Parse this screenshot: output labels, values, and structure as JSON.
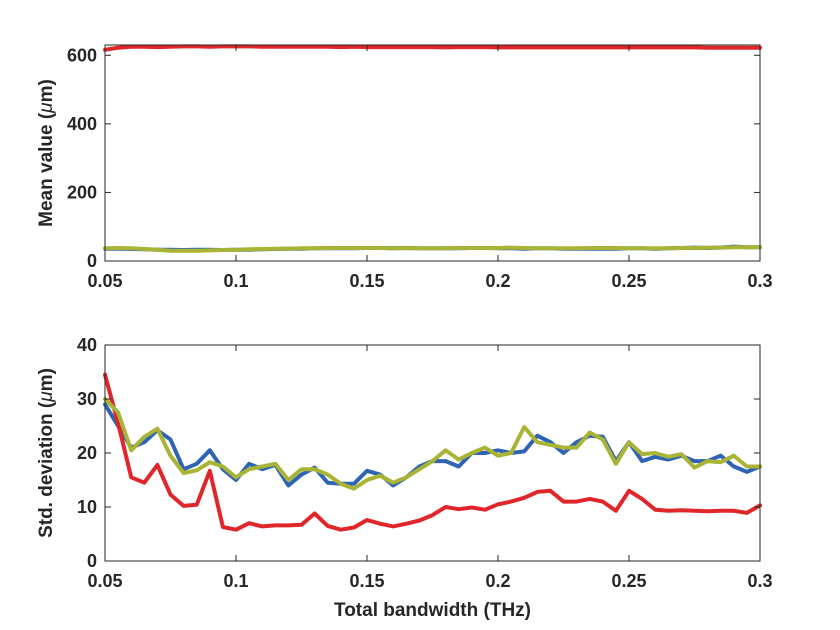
{
  "chart_data": [
    {
      "type": "line",
      "ylabel_prefix": "Mean value (",
      "ylabel_mu": "μ",
      "ylabel_suffix": "m)",
      "xlabel": "",
      "xlim": [
        0.05,
        0.3
      ],
      "ylim": [
        0,
        630
      ],
      "x_ticks": [
        0.05,
        0.1,
        0.15,
        0.2,
        0.25,
        0.3
      ],
      "x_tick_labels": [
        "0.05",
        "0.1",
        "0.15",
        "0.2",
        "0.25",
        "0.3"
      ],
      "y_ticks": [
        0,
        200,
        400,
        600
      ],
      "y_tick_labels": [
        "0",
        "200",
        "400",
        "600"
      ],
      "x": [
        0.05,
        0.055,
        0.06,
        0.065,
        0.07,
        0.075,
        0.08,
        0.085,
        0.09,
        0.095,
        0.1,
        0.105,
        0.11,
        0.115,
        0.12,
        0.125,
        0.13,
        0.135,
        0.14,
        0.145,
        0.15,
        0.155,
        0.16,
        0.165,
        0.17,
        0.175,
        0.18,
        0.185,
        0.19,
        0.195,
        0.2,
        0.205,
        0.21,
        0.215,
        0.22,
        0.225,
        0.23,
        0.235,
        0.24,
        0.245,
        0.25,
        0.255,
        0.26,
        0.265,
        0.27,
        0.275,
        0.28,
        0.285,
        0.29,
        0.295,
        0.3
      ],
      "series": [
        {
          "color": "#2f64b5",
          "values": [
            36,
            36,
            35,
            34,
            33,
            33,
            32,
            33,
            33,
            32,
            33,
            33,
            34,
            35,
            36,
            36,
            37,
            37,
            37,
            37,
            38,
            38,
            37,
            38,
            37,
            37,
            37,
            37,
            38,
            38,
            37,
            37,
            36,
            37,
            37,
            36,
            36,
            36,
            36,
            36,
            37,
            37,
            36,
            37,
            38,
            39,
            38,
            39,
            42,
            40,
            40
          ]
        },
        {
          "color": "#e1262b",
          "values": [
            616,
            622,
            625,
            625,
            624,
            625,
            626,
            626,
            625,
            626,
            626,
            626,
            625,
            625,
            625,
            625,
            625,
            625,
            624,
            625,
            624,
            624,
            624,
            624,
            624,
            624,
            623,
            624,
            624,
            624,
            623,
            623,
            623,
            623,
            623,
            623,
            623,
            623,
            623,
            623,
            623,
            623,
            623,
            623,
            623,
            623,
            622,
            622,
            622,
            622,
            622
          ]
        },
        {
          "color": "#a9b434",
          "values": [
            37,
            38,
            37,
            35,
            33,
            30,
            30,
            30,
            31,
            32,
            33,
            34,
            35,
            36,
            36,
            37,
            37,
            38,
            38,
            38,
            38,
            38,
            37,
            38,
            37,
            37,
            37,
            38,
            38,
            38,
            38,
            39,
            38,
            37,
            37,
            37,
            37,
            38,
            38,
            38,
            37,
            37,
            37,
            37,
            38,
            38,
            39,
            39,
            40,
            40,
            40
          ]
        }
      ]
    },
    {
      "type": "line",
      "ylabel_prefix": "Std. deviation (",
      "ylabel_mu": "μ",
      "ylabel_suffix": "m)",
      "xlabel": "Total bandwidth (THz)",
      "xlim": [
        0.05,
        0.3
      ],
      "ylim": [
        0,
        40
      ],
      "x_ticks": [
        0.05,
        0.1,
        0.15,
        0.2,
        0.25,
        0.3
      ],
      "x_tick_labels": [
        "0.05",
        "0.1",
        "0.15",
        "0.2",
        "0.25",
        "0.3"
      ],
      "y_ticks": [
        0,
        10,
        20,
        30,
        40
      ],
      "y_tick_labels": [
        "0",
        "10",
        "20",
        "30",
        "40"
      ],
      "x": [
        0.05,
        0.055,
        0.06,
        0.065,
        0.07,
        0.075,
        0.08,
        0.085,
        0.09,
        0.095,
        0.1,
        0.105,
        0.11,
        0.115,
        0.12,
        0.125,
        0.13,
        0.135,
        0.14,
        0.145,
        0.15,
        0.155,
        0.16,
        0.165,
        0.17,
        0.175,
        0.18,
        0.185,
        0.19,
        0.195,
        0.2,
        0.205,
        0.21,
        0.215,
        0.22,
        0.225,
        0.23,
        0.235,
        0.24,
        0.245,
        0.25,
        0.255,
        0.26,
        0.265,
        0.27,
        0.275,
        0.28,
        0.285,
        0.29,
        0.295,
        0.3
      ],
      "series": [
        {
          "color": "#2f64b5",
          "values": [
            29.0,
            25.0,
            21.0,
            22.0,
            24.2,
            22.5,
            17.0,
            18.0,
            20.5,
            17.0,
            15.0,
            18.0,
            17.0,
            17.8,
            14.0,
            16.0,
            17.3,
            14.5,
            14.3,
            14.3,
            16.7,
            16.0,
            14.0,
            15.5,
            17.5,
            18.5,
            18.5,
            17.5,
            20.0,
            20.0,
            20.5,
            20.0,
            20.3,
            23.2,
            22.0,
            20.0,
            22.0,
            23.2,
            23.0,
            18.5,
            22.0,
            18.5,
            19.3,
            18.8,
            19.5,
            18.5,
            18.5,
            19.5,
            17.5,
            16.5,
            17.5
          ]
        },
        {
          "color": "#e1262b",
          "values": [
            34.5,
            25.5,
            15.5,
            14.5,
            17.8,
            12.3,
            10.2,
            10.4,
            16.7,
            6.3,
            5.8,
            7.0,
            6.4,
            6.6,
            6.6,
            6.7,
            8.8,
            6.5,
            5.8,
            6.2,
            7.6,
            6.9,
            6.4,
            6.9,
            7.5,
            8.5,
            10.0,
            9.6,
            9.9,
            9.5,
            10.5,
            11.0,
            11.7,
            12.8,
            13.0,
            11.0,
            11.0,
            11.5,
            11.0,
            9.3,
            13.0,
            11.5,
            9.5,
            9.3,
            9.4,
            9.3,
            9.2,
            9.3,
            9.3,
            8.9,
            10.3
          ]
        },
        {
          "color": "#a9b434",
          "values": [
            30.0,
            27.5,
            20.5,
            23.0,
            24.5,
            19.5,
            16.3,
            16.8,
            18.3,
            17.5,
            15.5,
            17.0,
            17.5,
            18.0,
            15.0,
            17.0,
            17.0,
            16.0,
            14.3,
            13.4,
            15.0,
            15.8,
            14.5,
            15.5,
            17.0,
            18.5,
            20.5,
            18.8,
            20.0,
            21.0,
            19.5,
            20.0,
            24.8,
            22.0,
            21.5,
            21.0,
            21.0,
            23.8,
            22.5,
            18.0,
            22.0,
            19.8,
            20.0,
            19.3,
            19.8,
            17.3,
            18.5,
            18.3,
            19.5,
            17.5,
            17.5
          ]
        }
      ]
    }
  ]
}
